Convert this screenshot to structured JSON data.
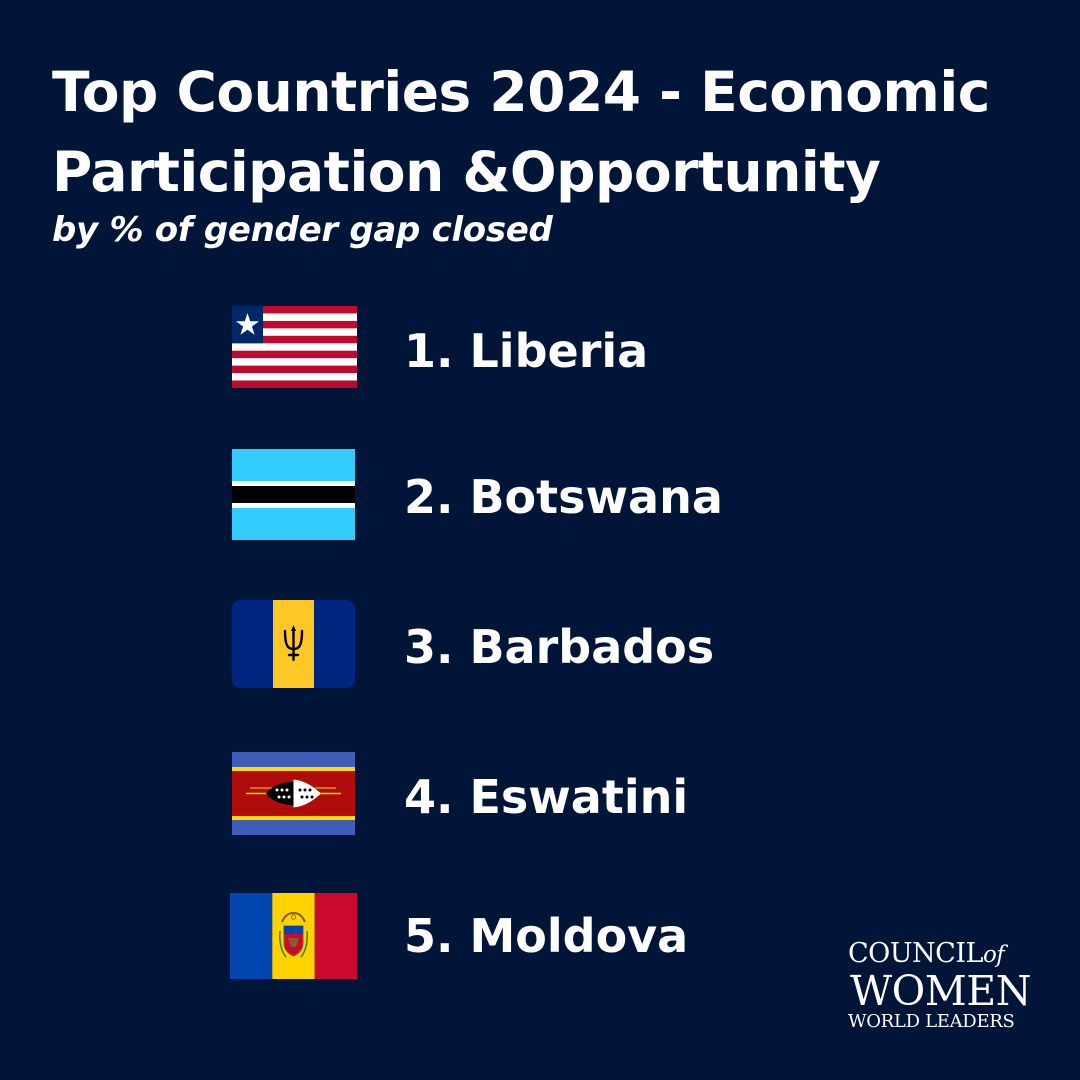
{
  "header": {
    "title_line1": "Top Countries 2024 - Economic",
    "title_line2": "Participation &Opportunity",
    "subtitle": "by % of gender gap closed"
  },
  "rankings": [
    {
      "label": "1. Liberia",
      "flag": "liberia-flag-icon"
    },
    {
      "label": "2. Botswana",
      "flag": "botswana-flag-icon"
    },
    {
      "label": "3. Barbados",
      "flag": "barbados-flag-icon"
    },
    {
      "label": "4. Eswatini",
      "flag": "eswatini-flag-icon"
    },
    {
      "label": "5. Moldova",
      "flag": "moldova-flag-icon"
    }
  ],
  "logo": {
    "line1": "COUNCIL",
    "line1_suffix": "of",
    "line2": "WOMEN",
    "line3": "WORLD LEADERS"
  },
  "colors": {
    "background": "#001538",
    "text": "#ffffff"
  }
}
